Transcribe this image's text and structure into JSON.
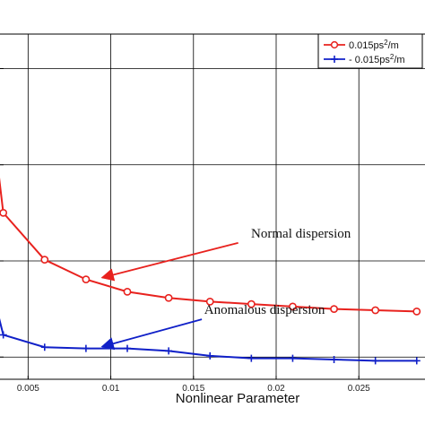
{
  "chart_data": {
    "type": "line",
    "xlabel": "Nonlinear Parameter",
    "ylabel": "",
    "xlim": [
      0.002,
      0.029
    ],
    "ylim": [
      0,
      28
    ],
    "x_ticks": [
      0.005,
      0.01,
      0.015,
      0.02,
      0.025
    ],
    "x_tick_labels": [
      "0.005",
      "0.01",
      "0.015",
      "0.02",
      "0.025"
    ],
    "y_ticks": [
      1.8,
      9.6,
      17.4,
      25.2
    ],
    "grid": true,
    "legend": {
      "placement": "top-right",
      "entries": [
        {
          "prefix": "0.015ps",
          "sup": "2",
          "suffix": "/m"
        },
        {
          "prefix": "- 0.015ps",
          "sup": "2",
          "suffix": "/m"
        }
      ]
    },
    "series": [
      {
        "name": "0.015ps2/m",
        "color": "#e8221e",
        "marker": "circle",
        "x": [
          0.0025,
          0.0035,
          0.006,
          0.0085,
          0.011,
          0.0135,
          0.016,
          0.0185,
          0.021,
          0.0235,
          0.026,
          0.0285
        ],
        "y": [
          24.8,
          13.5,
          9.7,
          8.1,
          7.1,
          6.6,
          6.3,
          6.1,
          5.9,
          5.7,
          5.6,
          5.5
        ]
      },
      {
        "name": "- 0.015ps2/m",
        "color": "#1020c8",
        "marker": "plus",
        "x": [
          0.0025,
          0.0035,
          0.006,
          0.0085,
          0.011,
          0.0135,
          0.016,
          0.0185,
          0.021,
          0.0235,
          0.026,
          0.0285
        ],
        "y": [
          8.9,
          3.6,
          2.6,
          2.5,
          2.5,
          2.3,
          1.9,
          1.7,
          1.7,
          1.6,
          1.5,
          1.5
        ]
      }
    ],
    "annotations": [
      {
        "text": "Normal dispersion",
        "arrow_target": [
          0.0085,
          8.1
        ],
        "anchor": [
          0.0215,
          11.5
        ]
      },
      {
        "text": "Anomalous dispersion",
        "arrow_target": [
          0.0085,
          2.5
        ],
        "anchor": [
          0.0193,
          5.3
        ]
      }
    ]
  }
}
